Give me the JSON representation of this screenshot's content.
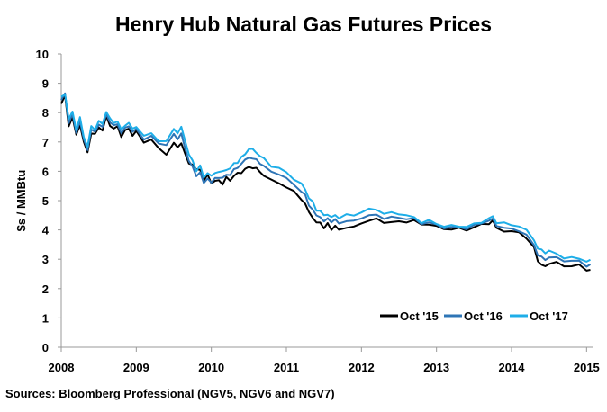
{
  "chart_data": {
    "type": "line",
    "title": "Henry Hub Natural Gas Futures Prices",
    "ylabel": "$s / MMBtu",
    "xlabel": "",
    "xlim": [
      2008,
      2015.08
    ],
    "ylim": [
      0,
      10
    ],
    "x_ticks": [
      "2008",
      "2009",
      "2010",
      "2011",
      "2012",
      "2013",
      "2014",
      "2015"
    ],
    "y_ticks": [
      "0",
      "1",
      "2",
      "3",
      "4",
      "5",
      "6",
      "7",
      "8",
      "9",
      "10"
    ],
    "legend_placement": "bottom-right",
    "grid": false,
    "x": [
      2008.0,
      2008.05,
      2008.1,
      2008.15,
      2008.2,
      2008.25,
      2008.3,
      2008.35,
      2008.4,
      2008.45,
      2008.5,
      2008.55,
      2008.6,
      2008.65,
      2008.7,
      2008.75,
      2008.8,
      2008.85,
      2008.9,
      2008.95,
      2009.0,
      2009.1,
      2009.2,
      2009.3,
      2009.4,
      2009.5,
      2009.55,
      2009.6,
      2009.65,
      2009.7,
      2009.75,
      2009.8,
      2009.85,
      2009.9,
      2009.95,
      2010.0,
      2010.05,
      2010.1,
      2010.15,
      2010.2,
      2010.25,
      2010.3,
      2010.35,
      2010.4,
      2010.45,
      2010.5,
      2010.55,
      2010.6,
      2010.65,
      2010.7,
      2010.8,
      2010.9,
      2011.0,
      2011.1,
      2011.2,
      2011.25,
      2011.3,
      2011.35,
      2011.4,
      2011.45,
      2011.5,
      2011.55,
      2011.6,
      2011.65,
      2011.7,
      2011.8,
      2011.9,
      2012.0,
      2012.1,
      2012.2,
      2012.3,
      2012.4,
      2012.5,
      2012.6,
      2012.7,
      2012.8,
      2012.9,
      2013.0,
      2013.1,
      2013.2,
      2013.3,
      2013.4,
      2013.5,
      2013.6,
      2013.7,
      2013.75,
      2013.8,
      2013.9,
      2014.0,
      2014.1,
      2014.2,
      2014.3,
      2014.35,
      2014.4,
      2014.45,
      2014.5,
      2014.6,
      2014.7,
      2014.8,
      2014.9,
      2015.0,
      2015.05
    ],
    "series": [
      {
        "name": "Oct '15",
        "color": "#000000",
        "values": [
          8.3,
          8.6,
          7.6,
          7.8,
          7.2,
          7.6,
          7.0,
          6.7,
          7.3,
          7.2,
          7.5,
          7.4,
          7.9,
          7.6,
          7.4,
          7.5,
          7.2,
          7.4,
          7.5,
          7.2,
          7.3,
          7.0,
          7.1,
          6.8,
          6.6,
          6.9,
          6.8,
          7.0,
          6.6,
          6.3,
          6.2,
          6.0,
          6.1,
          5.7,
          5.9,
          5.6,
          5.6,
          5.7,
          5.6,
          5.8,
          5.7,
          5.8,
          5.9,
          6.0,
          6.1,
          6.15,
          6.1,
          6.05,
          6.0,
          5.9,
          5.7,
          5.6,
          5.4,
          5.3,
          5.1,
          4.9,
          4.6,
          4.4,
          4.2,
          4.3,
          4.1,
          4.2,
          4.0,
          4.1,
          4.0,
          4.15,
          4.1,
          4.2,
          4.3,
          4.35,
          4.3,
          4.3,
          4.25,
          4.25,
          4.3,
          4.2,
          4.25,
          4.1,
          4.0,
          4.0,
          4.05,
          4.05,
          4.1,
          4.15,
          4.2,
          4.3,
          4.1,
          4.0,
          3.9,
          3.9,
          3.7,
          3.4,
          3.0,
          2.8,
          2.7,
          2.85,
          2.9,
          2.8,
          2.8,
          2.75,
          2.6,
          2.65
        ]
      },
      {
        "name": "Oct '16",
        "color": "#2e75b6",
        "values": [
          8.4,
          8.7,
          7.7,
          7.9,
          7.3,
          7.7,
          7.1,
          6.8,
          7.4,
          7.3,
          7.6,
          7.5,
          8.0,
          7.7,
          7.5,
          7.6,
          7.3,
          7.5,
          7.6,
          7.3,
          7.4,
          7.1,
          7.2,
          7.0,
          6.9,
          7.2,
          7.1,
          7.3,
          6.8,
          6.4,
          6.1,
          5.8,
          6.0,
          5.6,
          5.8,
          5.6,
          5.7,
          5.8,
          5.8,
          5.9,
          5.9,
          6.0,
          6.1,
          6.3,
          6.4,
          6.5,
          6.4,
          6.35,
          6.3,
          6.2,
          6.0,
          5.9,
          5.7,
          5.55,
          5.35,
          5.2,
          4.85,
          4.65,
          4.45,
          4.5,
          4.3,
          4.4,
          4.25,
          4.3,
          4.25,
          4.35,
          4.3,
          4.4,
          4.45,
          4.5,
          4.45,
          4.45,
          4.4,
          4.35,
          4.35,
          4.25,
          4.3,
          4.15,
          4.05,
          4.05,
          4.1,
          4.1,
          4.15,
          4.2,
          4.3,
          4.35,
          4.2,
          4.1,
          4.0,
          3.95,
          3.8,
          3.5,
          3.2,
          3.05,
          2.95,
          3.05,
          3.05,
          3.0,
          2.95,
          2.9,
          2.75,
          2.8
        ]
      },
      {
        "name": "Oct '17",
        "color": "#1eaee8",
        "values": [
          8.5,
          8.7,
          7.8,
          8.0,
          7.4,
          7.8,
          7.2,
          6.9,
          7.5,
          7.4,
          7.7,
          7.6,
          8.1,
          7.8,
          7.6,
          7.7,
          7.4,
          7.6,
          7.7,
          7.4,
          7.5,
          7.2,
          7.3,
          7.1,
          7.0,
          7.4,
          7.3,
          7.5,
          7.1,
          6.6,
          6.3,
          6.0,
          6.2,
          5.8,
          6.0,
          5.8,
          5.9,
          6.0,
          6.0,
          6.1,
          6.1,
          6.2,
          6.3,
          6.5,
          6.6,
          6.8,
          6.7,
          6.6,
          6.55,
          6.45,
          6.2,
          6.1,
          5.9,
          5.75,
          5.6,
          5.4,
          5.1,
          4.9,
          4.65,
          4.7,
          4.5,
          4.55,
          4.4,
          4.45,
          4.45,
          4.55,
          4.5,
          4.6,
          4.65,
          4.7,
          4.6,
          4.6,
          4.55,
          4.45,
          4.4,
          4.3,
          4.35,
          4.2,
          4.1,
          4.1,
          4.15,
          4.15,
          4.2,
          4.25,
          4.35,
          4.45,
          4.3,
          4.25,
          4.15,
          4.1,
          3.95,
          3.7,
          3.4,
          3.3,
          3.2,
          3.25,
          3.2,
          3.1,
          3.05,
          3.0,
          2.9,
          2.95
        ]
      }
    ]
  },
  "source_note": "Sources: Bloomberg Professional (NGV5, NGV6 and NGV7)"
}
